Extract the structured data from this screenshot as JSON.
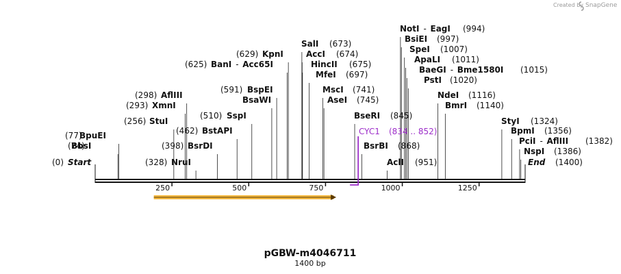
{
  "credit": {
    "text": "Created by",
    "brand": "SnapGene"
  },
  "plasmid": {
    "name": "pGBW-m4046711",
    "length_text": "1400 bp",
    "length": 1400
  },
  "ruler": {
    "ticks": [
      250,
      500,
      750,
      1000,
      1250
    ]
  },
  "features": [
    {
      "name": "CYC1",
      "range_text": "(834 .. 852)",
      "start": 834,
      "end": 852,
      "color": "#9d2fc9"
    },
    {
      "name": "orf-arrow",
      "start": 191,
      "end": 785,
      "color": "#f4b942"
    }
  ],
  "sites": [
    {
      "name": "Start",
      "pos_text": "(0)",
      "pos": 0,
      "style": "it"
    },
    {
      "name": "BbsI",
      "pos_text": "(74)",
      "pos": 74
    },
    {
      "name": "BpuEI",
      "pos_text": "(77)",
      "pos": 77
    },
    {
      "name": "StuI",
      "pos_text": "(256)",
      "pos": 256
    },
    {
      "name": "XmnI",
      "pos_text": "(293)",
      "pos": 293
    },
    {
      "name": "AflIII",
      "pos_text": "(298)",
      "pos": 298
    },
    {
      "name": "NruI",
      "pos_text": "(328)",
      "pos": 328
    },
    {
      "name": "BsrDI",
      "pos_text": "(398)",
      "pos": 398
    },
    {
      "name": "BstAPI",
      "pos_text": "(462)",
      "pos": 462
    },
    {
      "name": "SspI",
      "pos_text": "(510)",
      "pos": 510
    },
    {
      "name": "BsaWI",
      "pos_text": "",
      "pos": 575
    },
    {
      "name": "BspEI",
      "pos_text": "(591)",
      "pos": 591
    },
    {
      "name": "BanI",
      "second": "Acc65I",
      "pos_text": "(625)",
      "pos": 625
    },
    {
      "name": "KpnI",
      "pos_text": "(629)",
      "pos": 629
    },
    {
      "name": "SalI",
      "pos_text": "(673)",
      "pos": 673
    },
    {
      "name": "AccI",
      "pos_text": "(674)",
      "pos": 674
    },
    {
      "name": "HincII",
      "pos_text": "(675)",
      "pos": 675
    },
    {
      "name": "MfeI",
      "pos_text": "(697)",
      "pos": 697
    },
    {
      "name": "MscI",
      "pos_text": "(741)",
      "pos": 741
    },
    {
      "name": "AseI",
      "pos_text": "(745)",
      "pos": 745
    },
    {
      "name": "BseRI",
      "pos_text": "(845)",
      "pos": 845
    },
    {
      "name": "BsrBI",
      "pos_text": "(868)",
      "pos": 868
    },
    {
      "name": "AclI",
      "pos_text": "(951)",
      "pos": 951
    },
    {
      "name": "NotI",
      "second": "EagI",
      "pos_text": "(994)",
      "pos": 994
    },
    {
      "name": "BsiEI",
      "pos_text": "(997)",
      "pos": 997
    },
    {
      "name": "SpeI",
      "pos_text": "(1007)",
      "pos": 1007
    },
    {
      "name": "ApaLI",
      "pos_text": "(1011)",
      "pos": 1011
    },
    {
      "name": "BaeGI",
      "second": "Bme1580I",
      "pos_text": "(1015)",
      "pos": 1015
    },
    {
      "name": "PstI",
      "pos_text": "(1020)",
      "pos": 1020
    },
    {
      "name": "NdeI",
      "pos_text": "(1116)",
      "pos": 1116
    },
    {
      "name": "BmrI",
      "pos_text": "(1140)",
      "pos": 1140
    },
    {
      "name": "StyI",
      "pos_text": "(1324)",
      "pos": 1324
    },
    {
      "name": "BpmI",
      "pos_text": "(1356)",
      "pos": 1356
    },
    {
      "name": "PciI",
      "second": "AflIII",
      "pos_text": "(1382)",
      "pos": 1382
    },
    {
      "name": "NspI",
      "pos_text": "(1386)",
      "pos": 1386
    },
    {
      "name": "End",
      "pos_text": "(1400)",
      "pos": 1400,
      "style": "it"
    }
  ]
}
